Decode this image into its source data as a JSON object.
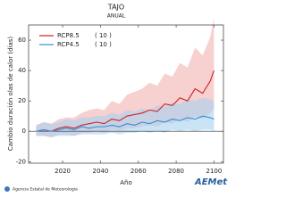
{
  "chart_data": {
    "type": "line",
    "title": "TAJO",
    "subtitle": "ANUAL",
    "x_label": "Año",
    "y_label": "Cambio duración olas de calor (días)",
    "x": [
      2006,
      2010,
      2014,
      2018,
      2022,
      2026,
      2030,
      2034,
      2038,
      2042,
      2046,
      2050,
      2054,
      2058,
      2062,
      2066,
      2070,
      2074,
      2078,
      2082,
      2086,
      2090,
      2094,
      2098,
      2100
    ],
    "series": [
      {
        "name": "RCP8.5",
        "note": "( 10 )",
        "color": "#cc2222",
        "band_color": "#f2b0b0",
        "values": [
          0,
          1,
          0,
          2,
          3,
          2,
          4,
          5,
          6,
          5,
          8,
          7,
          10,
          11,
          12,
          14,
          13,
          18,
          17,
          22,
          20,
          28,
          25,
          33,
          40
        ],
        "lower": [
          -3,
          -3,
          -4,
          -2,
          -2,
          -3,
          -1,
          -1,
          0,
          -1,
          1,
          0,
          2,
          2,
          3,
          4,
          3,
          6,
          5,
          8,
          6,
          10,
          8,
          12,
          15
        ],
        "upper": [
          4,
          6,
          5,
          8,
          9,
          9,
          12,
          14,
          15,
          14,
          20,
          18,
          24,
          26,
          28,
          32,
          30,
          38,
          36,
          45,
          42,
          55,
          50,
          62,
          75
        ]
      },
      {
        "name": "RCP4.5",
        "note": "( 10 )",
        "color": "#2f8fd8",
        "band_color": "#a6d2f0",
        "values": [
          0,
          1,
          0,
          1,
          2,
          1,
          3,
          2,
          3,
          3,
          4,
          3,
          5,
          4,
          6,
          5,
          7,
          6,
          8,
          7,
          9,
          8,
          10,
          9,
          8
        ],
        "lower": [
          -3,
          -3,
          -4,
          -3,
          -3,
          -3,
          -2,
          -2,
          -2,
          -2,
          -1,
          -2,
          -1,
          -1,
          0,
          -1,
          0,
          -1,
          1,
          0,
          1,
          0,
          1,
          1,
          0
        ],
        "upper": [
          4,
          6,
          5,
          6,
          8,
          7,
          9,
          9,
          10,
          10,
          12,
          11,
          14,
          13,
          15,
          14,
          17,
          16,
          19,
          18,
          21,
          20,
          22,
          21,
          20
        ]
      }
    ],
    "xlim": [
      2002,
      2105
    ],
    "xticks": [
      2020,
      2040,
      2060,
      2080,
      2100
    ],
    "ylim": [
      -21,
      70
    ],
    "yticks": [
      -20,
      0,
      20,
      40,
      60
    ],
    "hline": 0
  },
  "footer": {
    "agency": "Agencia Estatal de Meteorología",
    "logo": "AEMet"
  }
}
